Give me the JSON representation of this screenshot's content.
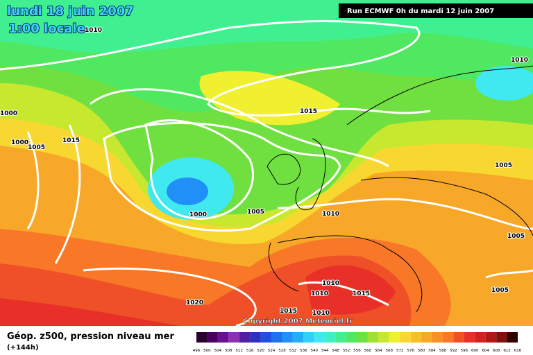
{
  "header": {
    "date": "lundi 18 juin 2007",
    "time": "1:00 locale",
    "run": "Run ECMWF 0h du mardi 12 juin 2007",
    "copyright": "Copyright 2007 Meteociel.fr"
  },
  "isobar_labels": [
    1010,
    1010,
    1015,
    1000,
    1000,
    1005,
    1015,
    1005,
    1000,
    1005,
    1010,
    1005,
    1010,
    1010,
    1015,
    1005,
    1020,
    1015,
    1010
  ],
  "legend": {
    "title": "Géop. z500, pression niveau mer",
    "lead": "(+144h)",
    "scale": [
      496,
      500,
      504,
      508,
      512,
      516,
      520,
      524,
      528,
      532,
      536,
      540,
      544,
      548,
      552,
      556,
      560,
      564,
      568,
      572,
      576,
      580,
      584,
      588,
      592,
      596,
      600,
      604,
      608,
      612,
      616
    ],
    "colors": [
      "#2a0030",
      "#4a0060",
      "#6a1090",
      "#8a30b0",
      "#5020a0",
      "#3030c0",
      "#2050e0",
      "#2070f0",
      "#2090f8",
      "#20b0f8",
      "#30d0f8",
      "#40e8f0",
      "#40f0c0",
      "#40f090",
      "#50e860",
      "#70e040",
      "#a0e030",
      "#c8e830",
      "#f0f030",
      "#f8d830",
      "#f8c028",
      "#f8a828",
      "#f89028",
      "#f87828",
      "#f05028",
      "#e83028",
      "#d02020",
      "#b01818",
      "#801010",
      "#300000"
    ]
  }
}
